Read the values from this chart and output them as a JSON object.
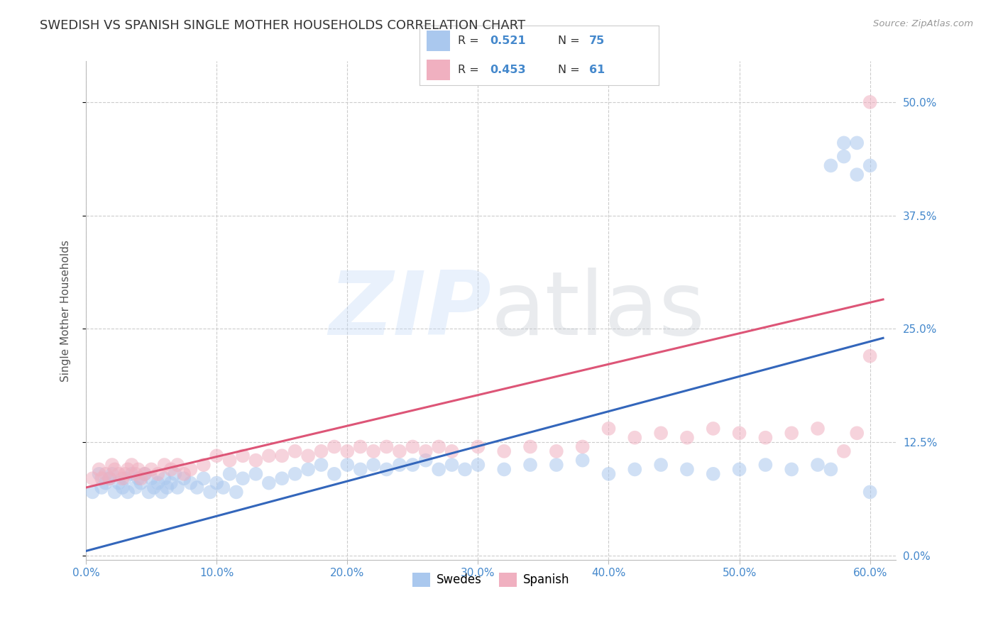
{
  "title": "SWEDISH VS SPANISH SINGLE MOTHER HOUSEHOLDS CORRELATION CHART",
  "source": "Source: ZipAtlas.com",
  "ylabel": "Single Mother Households",
  "xlim": [
    0.0,
    0.62
  ],
  "ylim": [
    -0.005,
    0.545
  ],
  "blue_color": "#aac8ee",
  "pink_color": "#f0b0c0",
  "blue_line_color": "#3366bb",
  "pink_line_color": "#dd5577",
  "watermark": "ZIPatlas",
  "background_color": "#ffffff",
  "grid_color": "#cccccc",
  "title_fontsize": 13,
  "tick_color": "#4488cc",
  "label_color": "#555555",
  "swedes_x": [
    0.005,
    0.01,
    0.012,
    0.015,
    0.018,
    0.02,
    0.022,
    0.025,
    0.028,
    0.03,
    0.032,
    0.035,
    0.038,
    0.04,
    0.042,
    0.045,
    0.048,
    0.05,
    0.052,
    0.055,
    0.058,
    0.06,
    0.062,
    0.065,
    0.068,
    0.07,
    0.075,
    0.08,
    0.085,
    0.09,
    0.095,
    0.1,
    0.105,
    0.11,
    0.115,
    0.12,
    0.13,
    0.14,
    0.15,
    0.16,
    0.17,
    0.18,
    0.19,
    0.2,
    0.21,
    0.22,
    0.23,
    0.24,
    0.25,
    0.26,
    0.27,
    0.28,
    0.29,
    0.3,
    0.32,
    0.34,
    0.36,
    0.38,
    0.4,
    0.42,
    0.44,
    0.46,
    0.48,
    0.5,
    0.52,
    0.54,
    0.56,
    0.57,
    0.58,
    0.59,
    0.6,
    0.6,
    0.59,
    0.58,
    0.57
  ],
  "swedes_y": [
    0.07,
    0.09,
    0.075,
    0.08,
    0.085,
    0.09,
    0.07,
    0.08,
    0.075,
    0.085,
    0.07,
    0.09,
    0.075,
    0.085,
    0.08,
    0.09,
    0.07,
    0.085,
    0.075,
    0.08,
    0.07,
    0.085,
    0.075,
    0.08,
    0.09,
    0.075,
    0.085,
    0.08,
    0.075,
    0.085,
    0.07,
    0.08,
    0.075,
    0.09,
    0.07,
    0.085,
    0.09,
    0.08,
    0.085,
    0.09,
    0.095,
    0.1,
    0.09,
    0.1,
    0.095,
    0.1,
    0.095,
    0.1,
    0.1,
    0.105,
    0.095,
    0.1,
    0.095,
    0.1,
    0.095,
    0.1,
    0.1,
    0.105,
    0.09,
    0.095,
    0.1,
    0.095,
    0.09,
    0.095,
    0.1,
    0.095,
    0.1,
    0.095,
    0.44,
    0.455,
    0.07,
    0.43,
    0.42,
    0.455,
    0.43
  ],
  "spanish_x": [
    0.005,
    0.01,
    0.012,
    0.015,
    0.018,
    0.02,
    0.022,
    0.025,
    0.028,
    0.03,
    0.032,
    0.035,
    0.038,
    0.04,
    0.042,
    0.045,
    0.05,
    0.055,
    0.06,
    0.065,
    0.07,
    0.075,
    0.08,
    0.09,
    0.1,
    0.11,
    0.12,
    0.13,
    0.14,
    0.15,
    0.16,
    0.17,
    0.18,
    0.19,
    0.2,
    0.21,
    0.22,
    0.23,
    0.24,
    0.25,
    0.26,
    0.27,
    0.28,
    0.3,
    0.32,
    0.34,
    0.36,
    0.38,
    0.4,
    0.42,
    0.44,
    0.46,
    0.48,
    0.5,
    0.52,
    0.54,
    0.56,
    0.58,
    0.59,
    0.6,
    0.6
  ],
  "spanish_y": [
    0.085,
    0.095,
    0.085,
    0.09,
    0.085,
    0.1,
    0.095,
    0.09,
    0.085,
    0.09,
    0.095,
    0.1,
    0.09,
    0.095,
    0.085,
    0.09,
    0.095,
    0.09,
    0.1,
    0.095,
    0.1,
    0.09,
    0.095,
    0.1,
    0.11,
    0.105,
    0.11,
    0.105,
    0.11,
    0.11,
    0.115,
    0.11,
    0.115,
    0.12,
    0.115,
    0.12,
    0.115,
    0.12,
    0.115,
    0.12,
    0.115,
    0.12,
    0.115,
    0.12,
    0.115,
    0.12,
    0.115,
    0.12,
    0.14,
    0.13,
    0.135,
    0.13,
    0.14,
    0.135,
    0.13,
    0.135,
    0.14,
    0.115,
    0.135,
    0.22,
    0.5
  ],
  "blue_slope": 0.385,
  "blue_intercept": 0.005,
  "pink_slope": 0.34,
  "pink_intercept": 0.075
}
